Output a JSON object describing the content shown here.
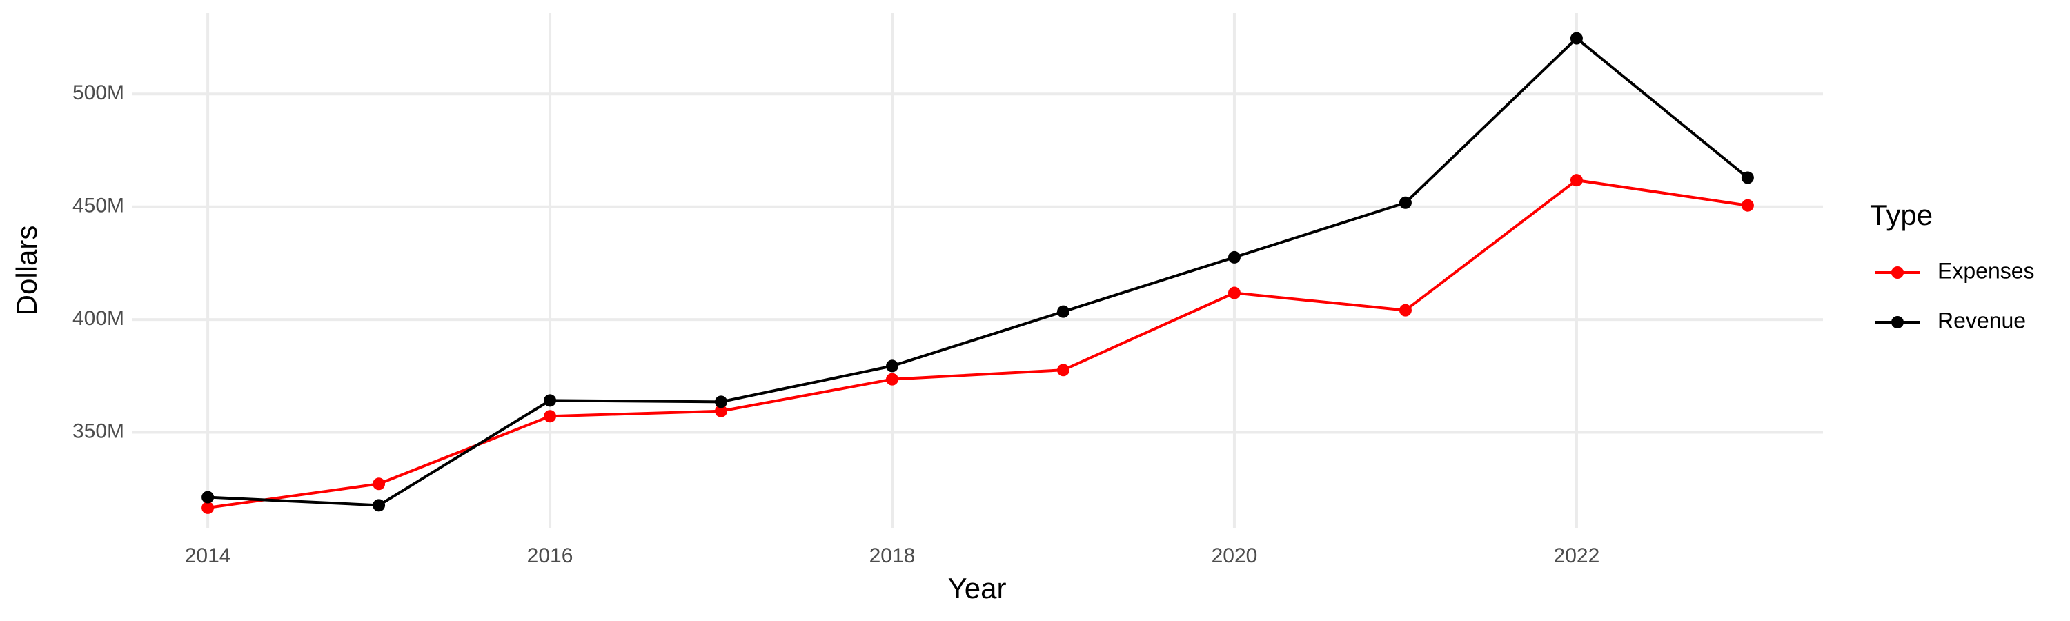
{
  "chart_data": {
    "type": "line",
    "x_label": "Year",
    "y_label": "Dollars",
    "x": [
      2014,
      2015,
      2016,
      2017,
      2018,
      2019,
      2020,
      2021,
      2022,
      2023
    ],
    "series": [
      {
        "name": "Expenses",
        "color": "#ff0000",
        "values": [
          316500000,
          327100000,
          357100000,
          359400000,
          373500000,
          377600000,
          411800000,
          404100000,
          461800000,
          450600000
        ]
      },
      {
        "name": "Revenue",
        "color": "#000000",
        "values": [
          321200000,
          317600000,
          364100000,
          363500000,
          379400000,
          403500000,
          427600000,
          451800000,
          524700000,
          462900000
        ]
      }
    ],
    "xlim": [
      2013.56,
      2023.44
    ],
    "xticks": [
      2014,
      2016,
      2018,
      2020,
      2022
    ],
    "ylim": [
      307600000,
      535900000
    ],
    "yticks": [
      {
        "value": 350000000,
        "label": "350M"
      },
      {
        "value": 400000000,
        "label": "400M"
      },
      {
        "value": 450000000,
        "label": "450M"
      },
      {
        "value": 500000000,
        "label": "500M"
      }
    ],
    "grid": true,
    "legend_title": "Type",
    "legend_position": "right"
  }
}
